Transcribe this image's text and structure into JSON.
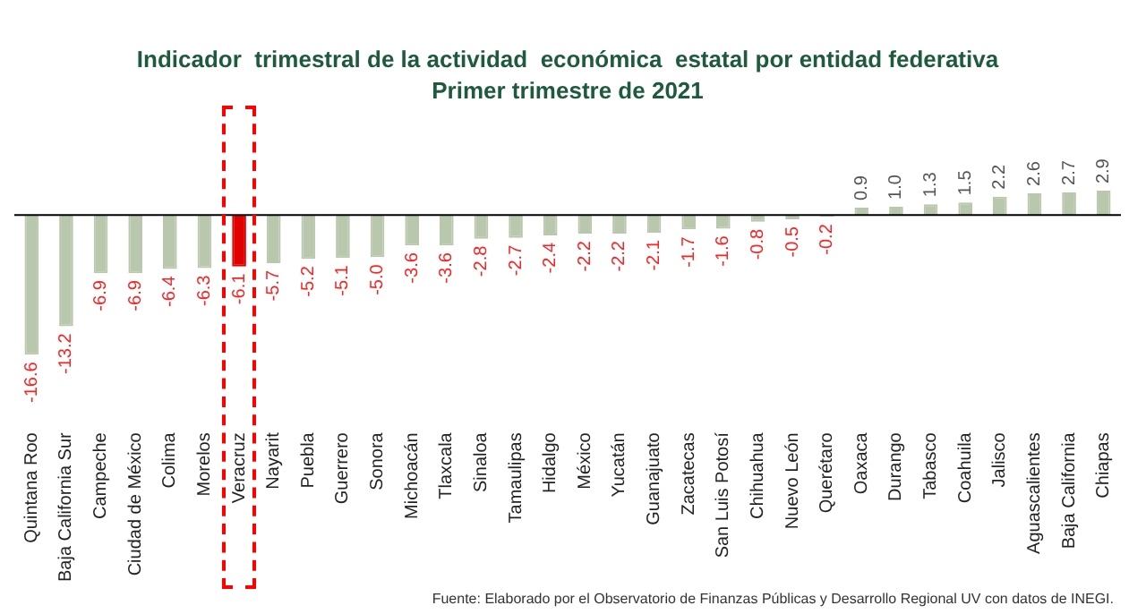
{
  "chart_data": {
    "type": "bar",
    "title": "Indicador  trimestral de la actividad  económica  estatal por entidad federativa",
    "subtitle": "Primer trimestre de 2021",
    "categories": [
      "Quintana Roo",
      "Baja California Sur",
      "Campeche",
      "Ciudad de México",
      "Colima",
      "Morelos",
      "Veracruz",
      "Nayarit",
      "Puebla",
      "Guerrero",
      "Sonora",
      "Michoacán",
      "Tlaxcala",
      "Sinaloa",
      "Tamaulipas",
      "Hidalgo",
      "México",
      "Yucatán",
      "Guanajuato",
      "Zacatecas",
      "San Luis Potosí",
      "Chihuahua",
      "Nuevo León",
      "Querétaro",
      "Oaxaca",
      "Durango",
      "Tabasco",
      "Coahuila",
      "Jalisco",
      "Aguascalientes",
      "Baja California",
      "Chiapas"
    ],
    "values": [
      -16.6,
      -13.2,
      -6.9,
      -6.9,
      -6.4,
      -6.3,
      -6.1,
      -5.7,
      -5.2,
      -5.1,
      -5.0,
      -3.6,
      -3.6,
      -2.8,
      -2.7,
      -2.4,
      -2.2,
      -2.2,
      -2.1,
      -1.7,
      -1.6,
      -0.8,
      -0.5,
      -0.2,
      0.9,
      1.0,
      1.3,
      1.5,
      2.2,
      2.6,
      2.7,
      2.9
    ],
    "colors": [
      "#b9c8ad",
      "#b9c8ad",
      "#b9c8ad",
      "#b9c8ad",
      "#b9c8ad",
      "#b9c8ad",
      "#e00000",
      "#b9c8ad",
      "#b9c8ad",
      "#b9c8ad",
      "#b9c8ad",
      "#b9c8ad",
      "#b9c8ad",
      "#b9c8ad",
      "#b9c8ad",
      "#b9c8ad",
      "#b9c8ad",
      "#b9c8ad",
      "#b9c8ad",
      "#b9c8ad",
      "#b9c8ad",
      "#b9c8ad",
      "#b9c8ad",
      "#b9c8ad",
      "#b9c8ad",
      "#b9c8ad",
      "#b9c8ad",
      "#b9c8ad",
      "#b9c8ad",
      "#b9c8ad",
      "#b9c8ad",
      "#b9c8ad"
    ],
    "value_labels": [
      "-16.6",
      "-13.2",
      "-6.9",
      "-6.9",
      "-6.4",
      "-6.3",
      "-6.1",
      "-5.7",
      "-5.2",
      "-5.1",
      "-5.0",
      "-3.6",
      "-3.6",
      "-2.8",
      "-2.7",
      "-2.4",
      "-2.2",
      "-2.2",
      "-2.1",
      "-1.7",
      "-1.6",
      "-0.8",
      "-0.5",
      "-0.2",
      "0.9",
      "1.0",
      "1.3",
      "1.5",
      "2.2",
      "2.6",
      "2.7",
      "2.9"
    ],
    "annotations": [
      "Fuente: Elaborado por el Observatorio de Finanzas Públicas y Desarrollo Regional UV con datos de INEGI."
    ],
    "grid": false,
    "legend": false
  }
}
